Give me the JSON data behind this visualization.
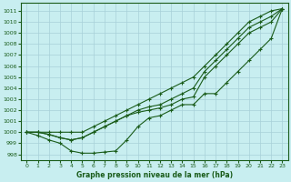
{
  "title": "Graphe pression niveau de la mer (hPa)",
  "bg_color": "#c8eef0",
  "grid_color": "#a8d0d8",
  "line_color": "#1a5c1a",
  "xlim": [
    -0.5,
    23.5
  ],
  "ylim": [
    997.5,
    1011.7
  ],
  "yticks": [
    998,
    999,
    1000,
    1001,
    1002,
    1003,
    1004,
    1005,
    1006,
    1007,
    1008,
    1009,
    1010,
    1011
  ],
  "xticks": [
    0,
    1,
    2,
    3,
    4,
    5,
    6,
    7,
    8,
    9,
    10,
    11,
    12,
    13,
    14,
    15,
    16,
    17,
    18,
    19,
    20,
    21,
    22,
    23
  ],
  "line_top": [
    1000,
    1000,
    1000,
    1000,
    1000,
    1000,
    1000.5,
    1001,
    1001.5,
    1002,
    1002.5,
    1003,
    1003.5,
    1004,
    1004.5,
    1005,
    1006,
    1007,
    1008,
    1009,
    1010,
    1010.5,
    1011,
    1011.2
  ],
  "line_mid1": [
    1000,
    1000,
    999.8,
    999.5,
    999.3,
    999.5,
    1000,
    1000.5,
    1001,
    1001.5,
    1002,
    1002.3,
    1002.5,
    1003,
    1003.5,
    1004,
    1005.5,
    1006.5,
    1007.5,
    1008.5,
    1009.5,
    1010,
    1010.5,
    1011.2
  ],
  "line_mid2": [
    1000,
    1000,
    999.8,
    999.5,
    999.3,
    999.5,
    1000,
    1000.5,
    1001,
    1001.5,
    1001.8,
    1002,
    1002.2,
    1002.5,
    1003,
    1003.2,
    1005,
    1006,
    1007,
    1008,
    1009,
    1009.5,
    1010,
    1011.2
  ],
  "line_bot": [
    1000,
    999.7,
    999.3,
    999.0,
    998.3,
    998.1,
    998.1,
    998.2,
    998.3,
    999.3,
    1000.5,
    1001.3,
    1001.5,
    1002,
    1002.5,
    1002.5,
    1003.5,
    1003.5,
    1004.5,
    1005.5,
    1006.5,
    1007.5,
    1008.5,
    1011.2
  ]
}
